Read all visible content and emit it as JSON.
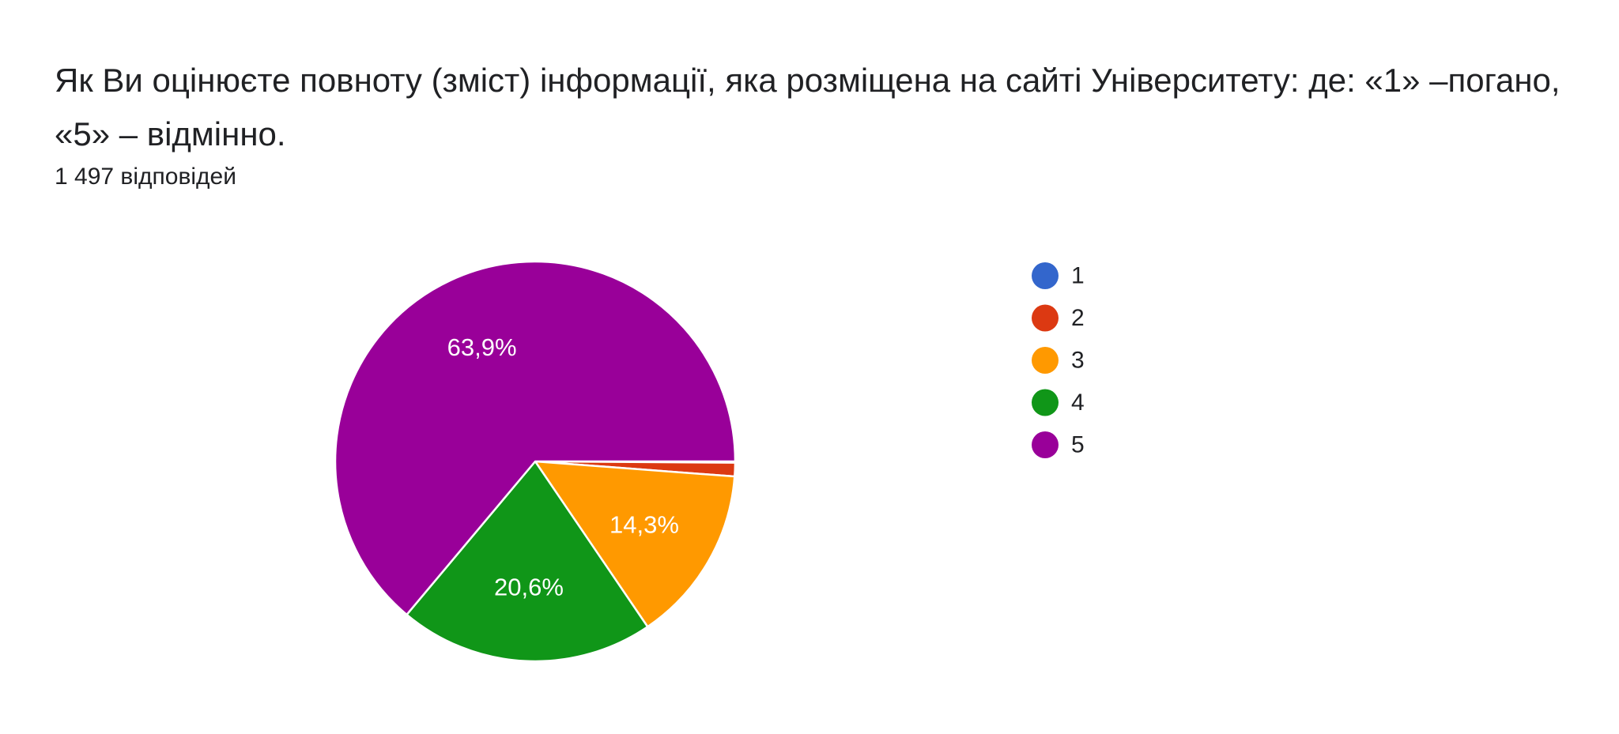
{
  "question": {
    "title": " Як Ви оцінюєте повноту (зміст) інформації, яка розміщена на сайті Університету: де: «1» –погано, «5» – відмінно.",
    "response_count": "1 497 відповідей"
  },
  "chart_data": {
    "type": "pie",
    "categories": [
      "1",
      "2",
      "3",
      "4",
      "5"
    ],
    "values": [
      0.1,
      1.1,
      14.3,
      20.6,
      63.9
    ],
    "labels": [
      "",
      "",
      "14,3%",
      "20,6%",
      "63,9%"
    ],
    "colors": [
      "#3366cc",
      "#dc3912",
      "#ff9900",
      "#109618",
      "#990099"
    ],
    "legend_position": "right"
  }
}
